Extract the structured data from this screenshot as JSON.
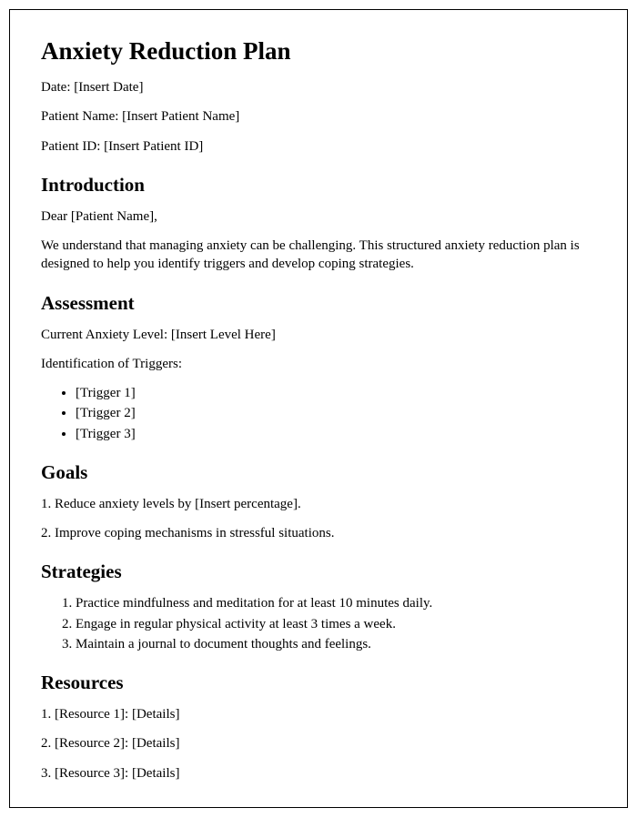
{
  "title": "Anxiety Reduction Plan",
  "meta": {
    "date_label": "Date: [Insert Date]",
    "patient_name_label": "Patient Name: [Insert Patient Name]",
    "patient_id_label": "Patient ID: [Insert Patient ID]"
  },
  "intro": {
    "heading": "Introduction",
    "greeting": "Dear [Patient Name],",
    "body": "We understand that managing anxiety can be challenging. This structured anxiety reduction plan is designed to help you identify triggers and develop coping strategies."
  },
  "assessment": {
    "heading": "Assessment",
    "level": "Current Anxiety Level: [Insert Level Here]",
    "triggers_label": "Identification of Triggers:",
    "triggers": [
      "[Trigger 1]",
      "[Trigger 2]",
      "[Trigger 3]"
    ]
  },
  "goals": {
    "heading": "Goals",
    "items": [
      "1. Reduce anxiety levels by [Insert percentage].",
      "2. Improve coping mechanisms in stressful situations."
    ]
  },
  "strategies": {
    "heading": "Strategies",
    "items": [
      "Practice mindfulness and meditation for at least 10 minutes daily.",
      "Engage in regular physical activity at least 3 times a week.",
      "Maintain a journal to document thoughts and feelings."
    ]
  },
  "resources": {
    "heading": "Resources",
    "items": [
      "1. [Resource 1]: [Details]",
      "2. [Resource 2]: [Details]",
      "3. [Resource 3]: [Details]"
    ]
  }
}
